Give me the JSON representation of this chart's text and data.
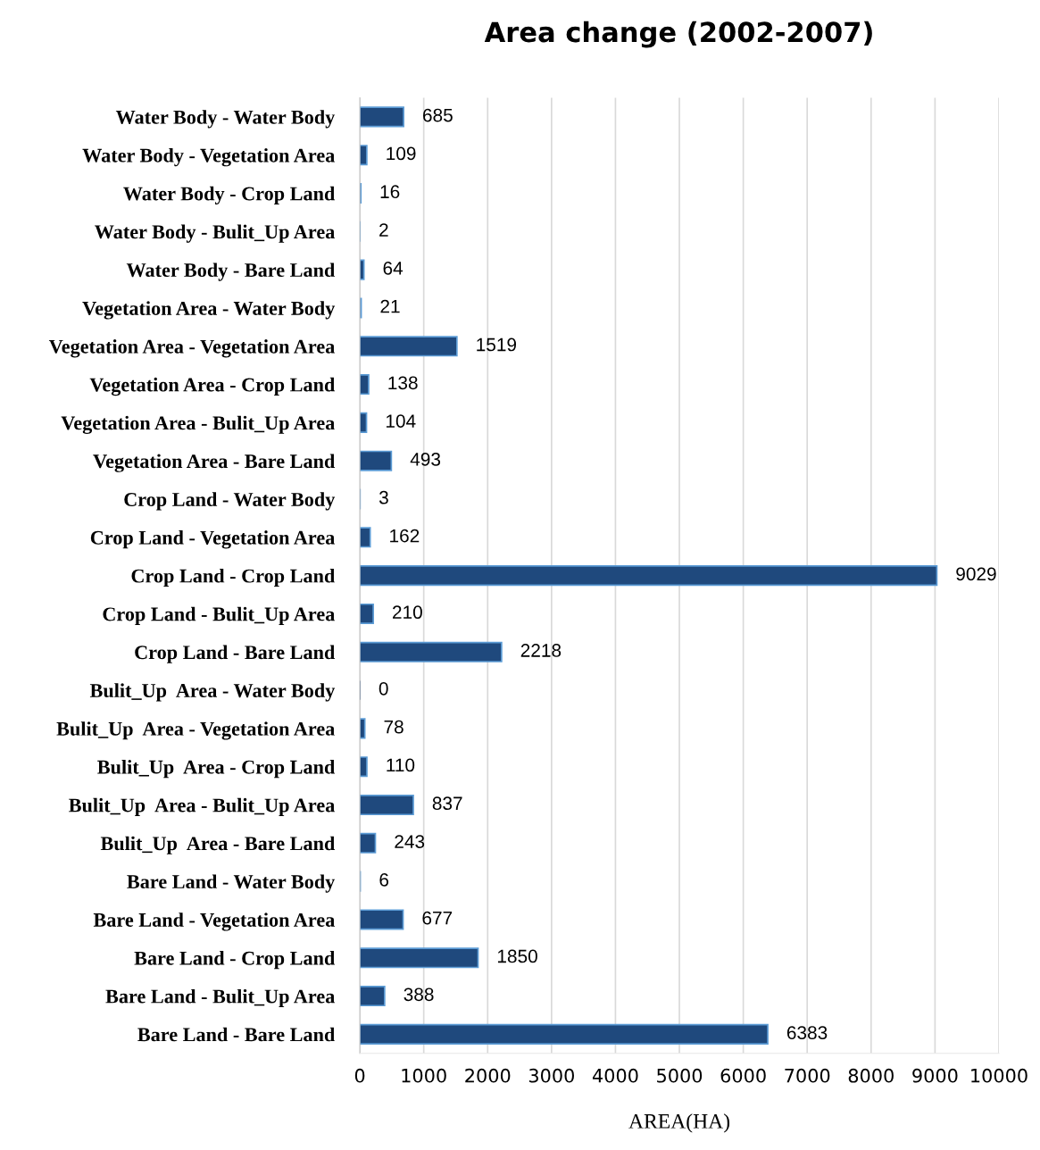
{
  "chart_data": {
    "type": "bar",
    "orientation": "horizontal",
    "title": "Area change (2002-2007)",
    "xlabel": "AREA(HA)",
    "categories": [
      "Water Body - Water Body",
      "Water Body - Vegetation Area",
      "Water Body - Crop Land",
      "Water Body - Bulit_Up Area",
      "Water Body - Bare Land",
      "Vegetation Area - Water Body",
      "Vegetation Area - Vegetation Area",
      "Vegetation Area - Crop Land",
      "Vegetation Area - Bulit_Up Area",
      "Vegetation Area - Bare Land",
      "Crop Land - Water Body",
      "Crop Land - Vegetation Area",
      "Crop Land - Crop Land",
      "Crop Land - Bulit_Up Area",
      "Crop Land - Bare Land",
      "Bulit_Up  Area - Water Body",
      "Bulit_Up  Area - Vegetation Area",
      "Bulit_Up  Area - Crop Land",
      "Bulit_Up  Area - Bulit_Up Area",
      "Bulit_Up  Area - Bare Land",
      "Bare Land - Water Body",
      "Bare Land - Vegetation Area",
      "Bare Land - Crop Land",
      "Bare Land - Bulit_Up Area",
      "Bare Land - Bare Land"
    ],
    "values": [
      685,
      109,
      16,
      2,
      64,
      21,
      1519,
      138,
      104,
      493,
      3,
      162,
      9029,
      210,
      2218,
      0,
      78,
      110,
      837,
      243,
      6,
      677,
      1850,
      388,
      6383
    ],
    "color": "#1f497d",
    "data_labels": true,
    "grid": "x",
    "legend": false,
    "xlim": [
      0,
      10000
    ],
    "xticks": [
      0,
      1000,
      2000,
      3000,
      4000,
      5000,
      6000,
      7000,
      8000,
      9000,
      10000
    ]
  }
}
